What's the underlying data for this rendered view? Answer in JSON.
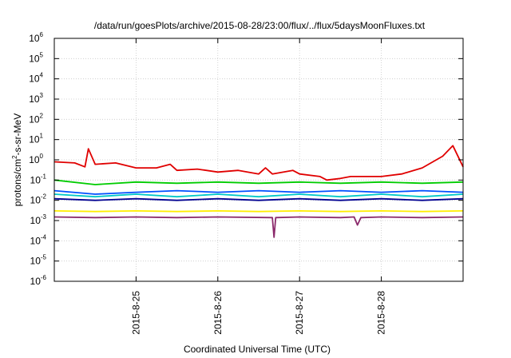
{
  "chart_data": {
    "type": "line",
    "title": "/data/run/goesPlots/archive/2015-08-28/23:00/flux/../flux/5daysMoonFluxes.txt",
    "xlabel": "Coordinated Universal Time (UTC)",
    "ylabel": {
      "prefix": "protons/cm",
      "sup": "2",
      "suffix": "-s-sr-MeV"
    },
    "yscale": "log",
    "ylim_exponent": [
      -6,
      6
    ],
    "y_tick_labels": [
      {
        "base": "10",
        "exp": "6"
      },
      {
        "base": "10",
        "exp": "5"
      },
      {
        "base": "10",
        "exp": "4"
      },
      {
        "base": "10",
        "exp": "3"
      },
      {
        "base": "10",
        "exp": "2"
      },
      {
        "base": "10",
        "exp": "1"
      },
      {
        "base": "10",
        "exp": "0"
      },
      {
        "base": "10",
        "exp": "-1"
      },
      {
        "base": "10",
        "exp": "-2"
      },
      {
        "base": "10",
        "exp": "-3"
      },
      {
        "base": "10",
        "exp": "-4"
      },
      {
        "base": "10",
        "exp": "-5"
      },
      {
        "base": "10",
        "exp": "-6"
      }
    ],
    "x_range_days": [
      "2015-08-24",
      "2015-08-29"
    ],
    "x_ticks": [
      "2015-8-25",
      "2015-8-26",
      "2015-8-27",
      "2015-8-28"
    ],
    "grid": true,
    "legend": "none",
    "series": [
      {
        "color": "#e00000",
        "points": [
          [
            "2015-08-24T00:00",
            0.8
          ],
          [
            "2015-08-24T06:00",
            0.7
          ],
          [
            "2015-08-24T09:00",
            0.45
          ],
          [
            "2015-08-24T10:00",
            3.5
          ],
          [
            "2015-08-24T12:00",
            0.6
          ],
          [
            "2015-08-24T18:00",
            0.7
          ],
          [
            "2015-08-25T00:00",
            0.4
          ],
          [
            "2015-08-25T06:00",
            0.4
          ],
          [
            "2015-08-25T10:00",
            0.6
          ],
          [
            "2015-08-25T12:00",
            0.3
          ],
          [
            "2015-08-25T18:00",
            0.35
          ],
          [
            "2015-08-26T00:00",
            0.25
          ],
          [
            "2015-08-26T06:00",
            0.3
          ],
          [
            "2015-08-26T12:00",
            0.2
          ],
          [
            "2015-08-26T14:00",
            0.4
          ],
          [
            "2015-08-26T16:00",
            0.2
          ],
          [
            "2015-08-26T22:00",
            0.3
          ],
          [
            "2015-08-27T00:00",
            0.2
          ],
          [
            "2015-08-27T06:00",
            0.15
          ],
          [
            "2015-08-27T08:00",
            0.1
          ],
          [
            "2015-08-27T12:00",
            0.12
          ],
          [
            "2015-08-27T15:00",
            0.15
          ],
          [
            "2015-08-27T18:00",
            0.15
          ],
          [
            "2015-08-28T00:00",
            0.15
          ],
          [
            "2015-08-28T06:00",
            0.2
          ],
          [
            "2015-08-28T12:00",
            0.4
          ],
          [
            "2015-08-28T18:00",
            1.5
          ],
          [
            "2015-08-28T21:00",
            5.0
          ],
          [
            "2015-08-29T00:00",
            0.45
          ]
        ]
      },
      {
        "color": "#00cc00",
        "points": [
          [
            "2015-08-24T00:00",
            0.1
          ],
          [
            "2015-08-24T12:00",
            0.06
          ],
          [
            "2015-08-25T00:00",
            0.08
          ],
          [
            "2015-08-25T12:00",
            0.07
          ],
          [
            "2015-08-26T00:00",
            0.08
          ],
          [
            "2015-08-26T12:00",
            0.07
          ],
          [
            "2015-08-27T00:00",
            0.08
          ],
          [
            "2015-08-27T12:00",
            0.07
          ],
          [
            "2015-08-28T00:00",
            0.08
          ],
          [
            "2015-08-28T12:00",
            0.07
          ],
          [
            "2015-08-29T00:00",
            0.08
          ]
        ]
      },
      {
        "color": "#00c8c8",
        "points": [
          [
            "2015-08-24T00:00",
            0.02
          ],
          [
            "2015-08-24T12:00",
            0.015
          ],
          [
            "2015-08-25T00:00",
            0.02
          ],
          [
            "2015-08-25T12:00",
            0.015
          ],
          [
            "2015-08-26T00:00",
            0.02
          ],
          [
            "2015-08-26T12:00",
            0.015
          ],
          [
            "2015-08-27T00:00",
            0.02
          ],
          [
            "2015-08-27T12:00",
            0.015
          ],
          [
            "2015-08-28T00:00",
            0.02
          ],
          [
            "2015-08-28T12:00",
            0.015
          ],
          [
            "2015-08-29T00:00",
            0.02
          ]
        ]
      },
      {
        "color": "#0050ff",
        "points": [
          [
            "2015-08-24T00:00",
            0.03
          ],
          [
            "2015-08-24T12:00",
            0.02
          ],
          [
            "2015-08-25T00:00",
            0.025
          ],
          [
            "2015-08-25T12:00",
            0.03
          ],
          [
            "2015-08-26T00:00",
            0.025
          ],
          [
            "2015-08-26T12:00",
            0.03
          ],
          [
            "2015-08-27T00:00",
            0.025
          ],
          [
            "2015-08-27T12:00",
            0.03
          ],
          [
            "2015-08-28T00:00",
            0.025
          ],
          [
            "2015-08-28T12:00",
            0.03
          ],
          [
            "2015-08-29T00:00",
            0.025
          ]
        ]
      },
      {
        "color": "#000090",
        "points": [
          [
            "2015-08-24T00:00",
            0.012
          ],
          [
            "2015-08-24T12:00",
            0.01
          ],
          [
            "2015-08-25T00:00",
            0.012
          ],
          [
            "2015-08-25T12:00",
            0.01
          ],
          [
            "2015-08-26T00:00",
            0.012
          ],
          [
            "2015-08-26T12:00",
            0.01
          ],
          [
            "2015-08-27T00:00",
            0.012
          ],
          [
            "2015-08-27T12:00",
            0.01
          ],
          [
            "2015-08-28T00:00",
            0.012
          ],
          [
            "2015-08-28T12:00",
            0.01
          ],
          [
            "2015-08-29T00:00",
            0.012
          ]
        ]
      },
      {
        "color": "#ffee00",
        "points": [
          [
            "2015-08-24T00:00",
            0.003
          ],
          [
            "2015-08-24T12:00",
            0.0028
          ],
          [
            "2015-08-25T00:00",
            0.003
          ],
          [
            "2015-08-25T12:00",
            0.0028
          ],
          [
            "2015-08-26T00:00",
            0.003
          ],
          [
            "2015-08-26T12:00",
            0.0028
          ],
          [
            "2015-08-27T00:00",
            0.003
          ],
          [
            "2015-08-27T12:00",
            0.0028
          ],
          [
            "2015-08-28T00:00",
            0.003
          ],
          [
            "2015-08-28T12:00",
            0.0028
          ],
          [
            "2015-08-29T00:00",
            0.003
          ]
        ]
      },
      {
        "color": "#8b2a6b",
        "points": [
          [
            "2015-08-24T00:00",
            0.0015
          ],
          [
            "2015-08-24T12:00",
            0.0014
          ],
          [
            "2015-08-25T00:00",
            0.0015
          ],
          [
            "2015-08-25T12:00",
            0.0014
          ],
          [
            "2015-08-26T00:00",
            0.0015
          ],
          [
            "2015-08-26T16:00",
            0.0014
          ],
          [
            "2015-08-26T16:30",
            0.00015
          ],
          [
            "2015-08-26T17:00",
            0.0014
          ],
          [
            "2015-08-27T00:00",
            0.0015
          ],
          [
            "2015-08-27T12:00",
            0.0014
          ],
          [
            "2015-08-27T16:00",
            0.0015
          ],
          [
            "2015-08-27T17:00",
            0.0006
          ],
          [
            "2015-08-27T18:00",
            0.0014
          ],
          [
            "2015-08-28T00:00",
            0.0015
          ],
          [
            "2015-08-28T12:00",
            0.0014
          ],
          [
            "2015-08-29T00:00",
            0.0015
          ]
        ]
      }
    ]
  }
}
